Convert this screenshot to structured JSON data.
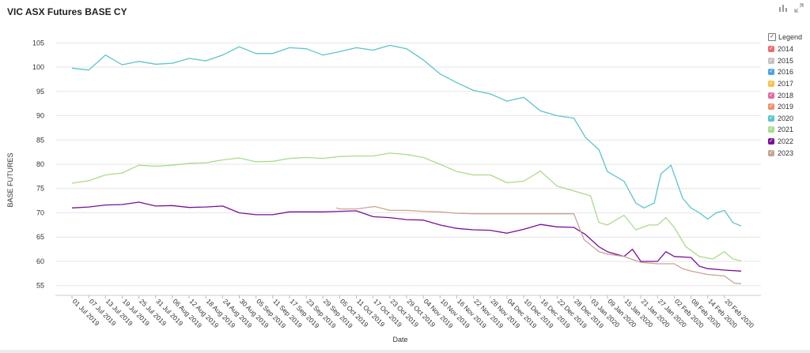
{
  "header": {
    "title": "VIC ASX Futures BASE CY",
    "chart_icon": "bar-chart-icon",
    "expand_icon": "expand-icon"
  },
  "legend": {
    "title": "Legend",
    "items": [
      {
        "label": "2014",
        "color": "#ef6b6b",
        "checked": false
      },
      {
        "label": "2015",
        "color": "#c3c3c3",
        "checked": false
      },
      {
        "label": "2016",
        "color": "#4aa3e8",
        "checked": false
      },
      {
        "label": "2017",
        "color": "#f6c24a",
        "checked": false
      },
      {
        "label": "2018",
        "color": "#e66aa4",
        "checked": false
      },
      {
        "label": "2019",
        "color": "#f0906a",
        "checked": false
      },
      {
        "label": "2020",
        "color": "#5bc4cc",
        "checked": true
      },
      {
        "label": "2021",
        "color": "#a9dc8a",
        "checked": true
      },
      {
        "label": "2022",
        "color": "#7a0f96",
        "checked": true
      },
      {
        "label": "2023",
        "color": "#c9a392",
        "checked": true
      }
    ]
  },
  "chart_data": {
    "type": "line",
    "xlabel": "Date",
    "ylabel": "BASE FUTURES",
    "ylim": [
      53,
      107
    ],
    "yticks": [
      55,
      60,
      65,
      70,
      75,
      80,
      85,
      90,
      95,
      100,
      105
    ],
    "x_dates": [
      "01 Jul 2019",
      "07 Jul 2019",
      "13 Jul 2019",
      "19 Jul 2019",
      "25 Jul 2019",
      "31 Jul 2019",
      "06 Aug 2019",
      "12 Aug 2019",
      "18 Aug 2019",
      "24 Aug 2019",
      "30 Aug 2019",
      "05 Sep 2019",
      "11 Sep 2019",
      "17 Sep 2019",
      "23 Sep 2019",
      "29 Sep 2019",
      "05 Oct 2019",
      "11 Oct 2019",
      "17 Oct 2019",
      "23 Oct 2019",
      "29 Oct 2019",
      "04 Nov 2019",
      "10 Nov 2019",
      "16 Nov 2019",
      "22 Nov 2019",
      "28 Nov 2019",
      "04 Dec 2019",
      "10 Dec 2019",
      "16 Dec 2019",
      "22 Dec 2019",
      "28 Dec 2019",
      "03 Jan 2020",
      "09 Jan 2020",
      "15 Jan 2020",
      "21 Jan 2020",
      "27 Jan 2020",
      "02 Feb 2020",
      "08 Feb 2020",
      "14 Feb 2020",
      "20 Feb 2020"
    ],
    "grid": true,
    "series": [
      {
        "name": "2020",
        "color": "#5bc4cc",
        "points": [
          [
            0,
            99.8
          ],
          [
            1,
            99.4
          ],
          [
            2,
            102.5
          ],
          [
            3,
            100.5
          ],
          [
            4,
            101.2
          ],
          [
            5,
            100.6
          ],
          [
            6,
            100.8
          ],
          [
            7,
            101.8
          ],
          [
            8,
            101.3
          ],
          [
            9,
            102.5
          ],
          [
            10,
            104.2
          ],
          [
            11,
            102.8
          ],
          [
            12,
            102.8
          ],
          [
            13,
            104.0
          ],
          [
            14,
            103.8
          ],
          [
            15,
            102.5
          ],
          [
            16,
            103.2
          ],
          [
            17,
            104.0
          ],
          [
            18,
            103.5
          ],
          [
            19,
            104.5
          ],
          [
            20,
            103.8
          ],
          [
            21,
            101.5
          ],
          [
            22,
            98.6
          ],
          [
            23,
            96.8
          ],
          [
            24,
            95.2
          ],
          [
            25,
            94.5
          ],
          [
            26,
            93.0
          ],
          [
            27,
            93.8
          ],
          [
            28,
            91.0
          ],
          [
            29,
            90.0
          ],
          [
            30,
            89.5
          ],
          [
            30.7,
            85.5
          ],
          [
            31.5,
            83
          ],
          [
            32,
            78.5
          ],
          [
            33,
            76.5
          ],
          [
            33.7,
            72
          ],
          [
            34.2,
            71
          ],
          [
            34.8,
            72
          ],
          [
            35.2,
            78
          ],
          [
            35.8,
            79.8
          ],
          [
            36.5,
            73
          ],
          [
            37,
            71
          ],
          [
            37.5,
            70
          ],
          [
            38,
            68.7
          ],
          [
            38.5,
            70
          ],
          [
            39,
            70.5
          ],
          [
            39.5,
            68
          ],
          [
            40,
            67.3
          ]
        ]
      },
      {
        "name": "2021",
        "color": "#a9dc8a",
        "points": [
          [
            0,
            76.1
          ],
          [
            1,
            76.6
          ],
          [
            2,
            77.8
          ],
          [
            3,
            78.2
          ],
          [
            4,
            79.8
          ],
          [
            5,
            79.6
          ],
          [
            6,
            79.8
          ],
          [
            7,
            80.2
          ],
          [
            8,
            80.3
          ],
          [
            9,
            80.9
          ],
          [
            10,
            81.3
          ],
          [
            11,
            80.5
          ],
          [
            12,
            80.6
          ],
          [
            13,
            81.2
          ],
          [
            14,
            81.4
          ],
          [
            15,
            81.2
          ],
          [
            16,
            81.6
          ],
          [
            17,
            81.7
          ],
          [
            18,
            81.7
          ],
          [
            19,
            82.3
          ],
          [
            20,
            82.0
          ],
          [
            21,
            81.4
          ],
          [
            22,
            80.0
          ],
          [
            23,
            78.5
          ],
          [
            24,
            77.8
          ],
          [
            25,
            77.8
          ],
          [
            26,
            76.2
          ],
          [
            27,
            76.5
          ],
          [
            28,
            78.6
          ],
          [
            29,
            75.5
          ],
          [
            30,
            74.5
          ],
          [
            31,
            73.5
          ],
          [
            31.5,
            68
          ],
          [
            32,
            67.5
          ],
          [
            33,
            69.5
          ],
          [
            33.7,
            66.5
          ],
          [
            34.5,
            67.5
          ],
          [
            35,
            67.5
          ],
          [
            35.5,
            69
          ],
          [
            36,
            67
          ],
          [
            36.7,
            63
          ],
          [
            37.5,
            61
          ],
          [
            38.3,
            60.5
          ],
          [
            39,
            62
          ],
          [
            39.5,
            60.5
          ],
          [
            40,
            60.1
          ]
        ]
      },
      {
        "name": "2022",
        "color": "#7a0f96",
        "points": [
          [
            0,
            71.0
          ],
          [
            1,
            71.2
          ],
          [
            2,
            71.6
          ],
          [
            3,
            71.7
          ],
          [
            4,
            72.2
          ],
          [
            5,
            71.4
          ],
          [
            6,
            71.5
          ],
          [
            7,
            71.1
          ],
          [
            8,
            71.2
          ],
          [
            9,
            71.4
          ],
          [
            10,
            70.0
          ],
          [
            11,
            69.6
          ],
          [
            12,
            69.6
          ],
          [
            13,
            70.2
          ],
          [
            14,
            70.2
          ],
          [
            15,
            70.2
          ],
          [
            16,
            70.3
          ],
          [
            17,
            70.4
          ],
          [
            18,
            69.2
          ],
          [
            19,
            69.0
          ],
          [
            20,
            68.6
          ],
          [
            21,
            68.5
          ],
          [
            22,
            67.5
          ],
          [
            23,
            66.8
          ],
          [
            24,
            66.5
          ],
          [
            25,
            66.4
          ],
          [
            26,
            65.8
          ],
          [
            27,
            66.6
          ],
          [
            28,
            67.6
          ],
          [
            29,
            67.1
          ],
          [
            30,
            67.0
          ],
          [
            30.7,
            65.5
          ],
          [
            31.5,
            63
          ],
          [
            32,
            62
          ],
          [
            33,
            61
          ],
          [
            33.5,
            62.5
          ],
          [
            34,
            60
          ],
          [
            35,
            60
          ],
          [
            35.5,
            62
          ],
          [
            36,
            61
          ],
          [
            37,
            60.8
          ],
          [
            37.5,
            59
          ],
          [
            38,
            58.5
          ],
          [
            39,
            58.2
          ],
          [
            40,
            58.0
          ]
        ]
      },
      {
        "name": "2023",
        "color": "#c9a392",
        "points": [
          [
            15.8,
            71.0
          ],
          [
            16,
            70.8
          ],
          [
            17,
            70.8
          ],
          [
            18.1,
            71.3
          ],
          [
            19,
            70.5
          ],
          [
            20,
            70.5
          ],
          [
            21,
            70.3
          ],
          [
            22,
            70.2
          ],
          [
            23,
            69.9
          ],
          [
            24,
            69.8
          ],
          [
            25,
            69.8
          ],
          [
            26,
            69.8
          ],
          [
            27,
            69.8
          ],
          [
            28,
            69.8
          ],
          [
            29,
            69.8
          ],
          [
            30,
            69.8
          ],
          [
            30.6,
            64.5
          ],
          [
            31.5,
            62
          ],
          [
            32,
            61.5
          ],
          [
            33,
            61
          ],
          [
            34,
            59.8
          ],
          [
            35,
            59.5
          ],
          [
            36,
            59.5
          ],
          [
            36.5,
            58.5
          ],
          [
            37,
            58
          ],
          [
            38,
            57.3
          ],
          [
            39,
            57.0
          ],
          [
            39.6,
            55.5
          ],
          [
            40,
            55.4
          ]
        ]
      }
    ]
  }
}
